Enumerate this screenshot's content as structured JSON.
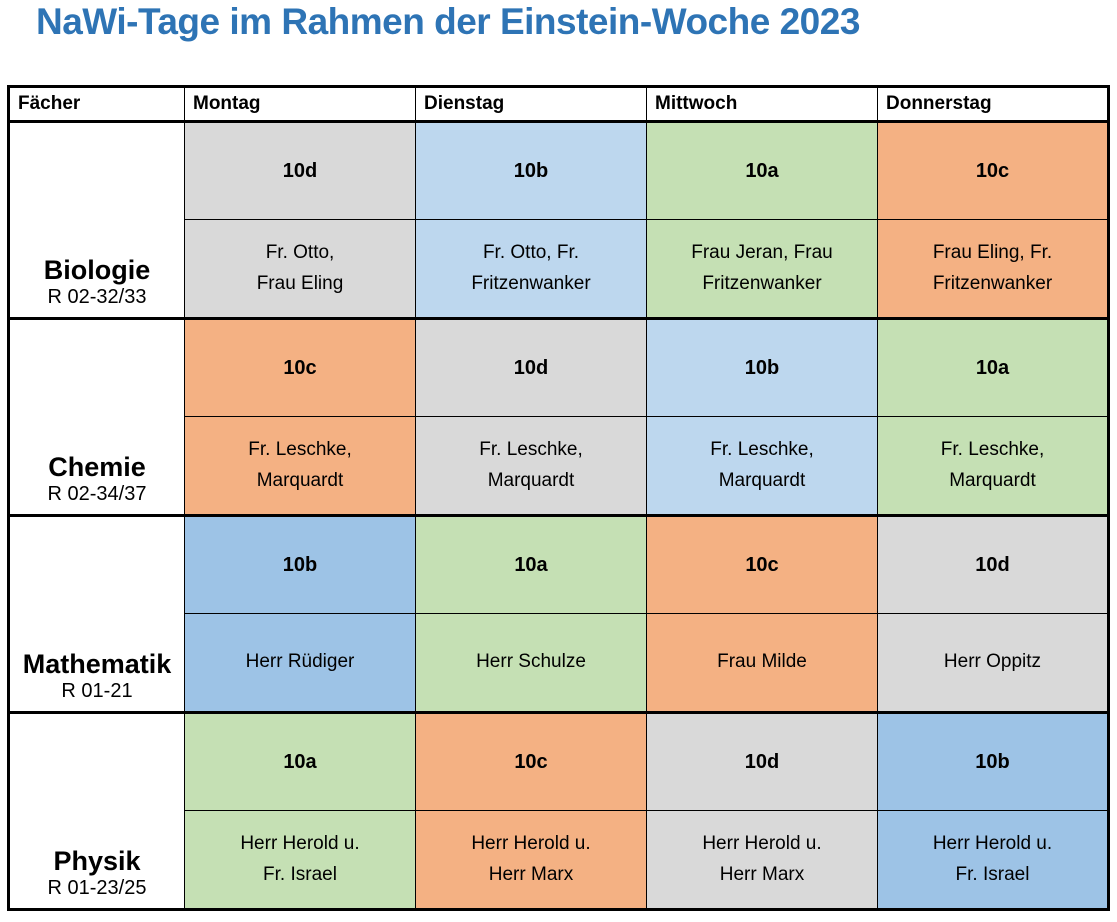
{
  "title": "NaWi-Tage im Rahmen der Einstein-Woche 2023",
  "colors": {
    "title_blue": "#2E74B5",
    "gray": "#D9D9D9",
    "blue_light": "#BDD7EE",
    "blue": "#9DC3E6",
    "green": "#C5E0B4",
    "orange": "#F4B183",
    "border": "#000000"
  },
  "table": {
    "headers": [
      "Fächer",
      "Montag",
      "Dienstag",
      "Mittwoch",
      "Donnerstag"
    ],
    "rows": [
      {
        "subject": "Biologie",
        "room": "R 02-32/33",
        "days": [
          {
            "class": "10d",
            "teachers": "Fr. Otto,\nFrau Eling",
            "color": "gray"
          },
          {
            "class": "10b",
            "teachers": "Fr. Otto, Fr.\nFritzenwanker",
            "color": "blue_light"
          },
          {
            "class": "10a",
            "teachers": "Frau Jeran, Frau\nFritzenwanker",
            "color": "green"
          },
          {
            "class": "10c",
            "teachers": "Frau Eling, Fr.\nFritzenwanker",
            "color": "orange"
          }
        ]
      },
      {
        "subject": "Chemie",
        "room": "R 02-34/37",
        "days": [
          {
            "class": "10c",
            "teachers": "Fr. Leschke,\nMarquardt",
            "color": "orange"
          },
          {
            "class": "10d",
            "teachers": "Fr. Leschke,\nMarquardt",
            "color": "gray"
          },
          {
            "class": "10b",
            "teachers": "Fr. Leschke,\nMarquardt",
            "color": "blue_light"
          },
          {
            "class": "10a",
            "teachers": "Fr. Leschke,\nMarquardt",
            "color": "green"
          }
        ]
      },
      {
        "subject": "Mathematik",
        "room": "R 01-21",
        "days": [
          {
            "class": "10b",
            "teachers": "Herr Rüdiger",
            "color": "blue"
          },
          {
            "class": "10a",
            "teachers": "Herr Schulze",
            "color": "green"
          },
          {
            "class": "10c",
            "teachers": "Frau Milde",
            "color": "orange"
          },
          {
            "class": "10d",
            "teachers": "Herr Oppitz",
            "color": "gray"
          }
        ]
      },
      {
        "subject": "Physik",
        "room": "R 01-23/25",
        "days": [
          {
            "class": "10a",
            "teachers": "Herr Herold u.\nFr. Israel",
            "color": "green"
          },
          {
            "class": "10c",
            "teachers": "Herr Herold u.\nHerr Marx",
            "color": "orange"
          },
          {
            "class": "10d",
            "teachers": "Herr Herold u.\nHerr Marx",
            "color": "gray"
          },
          {
            "class": "10b",
            "teachers": "Herr Herold u.\nFr. Israel",
            "color": "blue"
          }
        ]
      }
    ]
  }
}
